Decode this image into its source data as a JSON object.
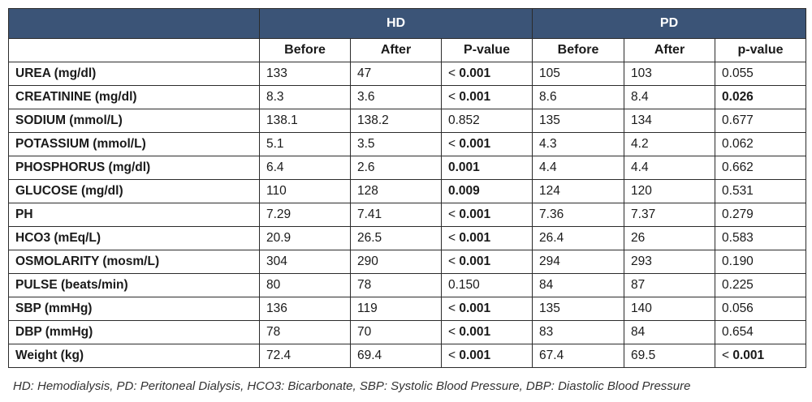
{
  "header": {
    "group1": "HD",
    "group2": "PD",
    "sub": [
      "Before",
      "After",
      "P-value",
      "Before",
      "After",
      "p-value"
    ]
  },
  "rows": [
    {
      "label": "UREA (mg/dl)",
      "hd_before": "133",
      "hd_after": "47",
      "hd_p": "< 0.001",
      "pd_before": "105",
      "pd_after": "103",
      "pd_p": "0.055"
    },
    {
      "label": "CREATININE (mg/dl)",
      "hd_before": "8.3",
      "hd_after": "3.6",
      "hd_p": "< 0.001",
      "pd_before": "8.6",
      "pd_after": "8.4",
      "pd_p": "0.026"
    },
    {
      "label": "SODIUM (mmol/L)",
      "hd_before": "138.1",
      "hd_after": "138.2",
      "hd_p": "0.852",
      "pd_before": "135",
      "pd_after": "134",
      "pd_p": "0.677"
    },
    {
      "label": "POTASSIUM (mmol/L)",
      "hd_before": "5.1",
      "hd_after": "3.5",
      "hd_p": "< 0.001",
      "pd_before": "4.3",
      "pd_after": "4.2",
      "pd_p": "0.062"
    },
    {
      "label": "PHOSPHORUS (mg/dl)",
      "hd_before": "6.4",
      "hd_after": "2.6",
      "hd_p": "0.001",
      "pd_before": "4.4",
      "pd_after": "4.4",
      "pd_p": "0.662"
    },
    {
      "label": "GLUCOSE (mg/dl)",
      "hd_before": "110",
      "hd_after": "128",
      "hd_p": "0.009",
      "pd_before": "124",
      "pd_after": "120",
      "pd_p": "0.531"
    },
    {
      "label": "PH",
      "hd_before": "7.29",
      "hd_after": "7.41",
      "hd_p": "< 0.001",
      "pd_before": "7.36",
      "pd_after": "7.37",
      "pd_p": "0.279"
    },
    {
      "label": "HCO3 (mEq/L)",
      "hd_before": "20.9",
      "hd_after": "26.5",
      "hd_p": "< 0.001",
      "pd_before": "26.4",
      "pd_after": "26",
      "pd_p": "0.583"
    },
    {
      "label": "OSMOLARITY (mosm/L)",
      "hd_before": "304",
      "hd_after": "290",
      "hd_p": "< 0.001",
      "pd_before": "294",
      "pd_after": "293",
      "pd_p": "0.190"
    },
    {
      "label": "PULSE (beats/min)",
      "hd_before": "80",
      "hd_after": "78",
      "hd_p": "0.150",
      "pd_before": "84",
      "pd_after": "87",
      "pd_p": "0.225"
    },
    {
      "label": "SBP (mmHg)",
      "hd_before": "136",
      "hd_after": "119",
      "hd_p": "< 0.001",
      "pd_before": "135",
      "pd_after": "140",
      "pd_p": "0.056"
    },
    {
      "label": "DBP (mmHg)",
      "hd_before": "78",
      "hd_after": "70",
      "hd_p": "< 0.001",
      "pd_before": "83",
      "pd_after": "84",
      "pd_p": "0.654"
    },
    {
      "label": "Weight (kg)",
      "hd_before": "72.4",
      "hd_after": "69.4",
      "hd_p": "< 0.001",
      "pd_before": "67.4",
      "pd_after": "69.5",
      "pd_p": "< 0.001"
    }
  ],
  "footnote": "HD: Hemodialysis, PD: Peritoneal Dialysis, HCO3: Bicarbonate, SBP: Systolic Blood Pressure, DBP: Diastolic Blood Pressure",
  "colors": {
    "header_bg": "#3b5477",
    "header_text": "#ffffff",
    "border": "#2b2b2b"
  }
}
